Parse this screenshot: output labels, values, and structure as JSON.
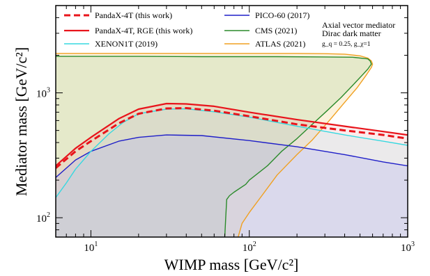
{
  "chart_data": {
    "type": "line",
    "xlabel": "WIMP mass [GeV/c²]",
    "ylabel": "Mediator mass [GeV/c²]",
    "xscale": "log",
    "yscale": "log",
    "xlim": [
      6,
      1000
    ],
    "ylim": [
      70,
      5000
    ],
    "xticks": [
      {
        "value": 10,
        "base": "10",
        "exp": "1"
      },
      {
        "value": 100,
        "base": "10",
        "exp": "2"
      },
      {
        "value": 1000,
        "base": "10",
        "exp": "3"
      }
    ],
    "yticks": [
      {
        "value": 100,
        "base": "10",
        "exp": "2"
      },
      {
        "value": 1000,
        "base": "10",
        "exp": "3"
      }
    ],
    "legend_position": "top",
    "annotation": {
      "line1": "Axial vector mediator",
      "line2": "Dirac dark matter",
      "line3": "g_q = 0.25, g_χ=1"
    },
    "series": [
      {
        "name": "PandaX-4T (this work)",
        "color": "#e8141b",
        "dash": true,
        "width": 3,
        "x": [
          6,
          8,
          10,
          15,
          20,
          30,
          40,
          60,
          100,
          200,
          400,
          700,
          1000
        ],
        "y": [
          250,
          340,
          410,
          570,
          680,
          750,
          755,
          720,
          650,
          560,
          500,
          460,
          430
        ]
      },
      {
        "name": "PandaX-4T, RGE (this work)",
        "color": "#e8141b",
        "dash": false,
        "width": 2.2,
        "x": [
          6,
          8,
          10,
          15,
          20,
          30,
          40,
          60,
          100,
          200,
          400,
          700,
          1000
        ],
        "y": [
          260,
          360,
          440,
          620,
          740,
          820,
          815,
          780,
          700,
          610,
          540,
          490,
          460
        ]
      },
      {
        "name": "XENON1T (2019)",
        "color": "#36d8e0",
        "dash": false,
        "width": 1.4,
        "x": [
          6,
          7,
          8,
          10,
          13,
          16,
          20,
          30,
          40,
          60,
          100,
          200,
          400,
          700,
          1000
        ],
        "y": [
          145,
          190,
          245,
          340,
          470,
          580,
          680,
          740,
          745,
          705,
          640,
          540,
          460,
          410,
          380
        ]
      },
      {
        "name": "PICO-60 (2017)",
        "color": "#1e1ec8",
        "dash": false,
        "width": 1.4,
        "x": [
          6,
          8,
          10,
          15,
          20,
          30,
          50,
          100,
          200,
          400,
          700,
          1000
        ],
        "y": [
          210,
          290,
          340,
          410,
          440,
          460,
          455,
          415,
          370,
          320,
          280,
          260
        ]
      },
      {
        "name": "CMS (2021)",
        "color": "#2a8a2a",
        "dash": false,
        "width": 1.4,
        "x": [
          70,
          71,
          72,
          75,
          80,
          95,
          100,
          130,
          160,
          200,
          250,
          310,
          380,
          450,
          520,
          560,
          580,
          590,
          580,
          560,
          450,
          300,
          150,
          50,
          20,
          10,
          6
        ],
        "y": [
          70,
          100,
          140,
          150,
          160,
          185,
          200,
          260,
          340,
          430,
          560,
          720,
          920,
          1150,
          1400,
          1550,
          1650,
          1700,
          1800,
          1870,
          1930,
          1940,
          1950,
          1950,
          1960,
          1960,
          1960
        ]
      },
      {
        "name": "ATLAS (2021)",
        "color": "#f0a020",
        "dash": false,
        "width": 1.4,
        "x": [
          85,
          90,
          100,
          120,
          150,
          200,
          250,
          320,
          400,
          480,
          550,
          590,
          600,
          590,
          560,
          500,
          400,
          300,
          200,
          100,
          50,
          20,
          10,
          6
        ],
        "y": [
          70,
          90,
          110,
          150,
          220,
          320,
          420,
          600,
          840,
          1100,
          1400,
          1600,
          1700,
          1800,
          1900,
          1980,
          2040,
          2060,
          2070,
          2070,
          2070,
          2070,
          2070,
          2070
        ]
      }
    ]
  }
}
